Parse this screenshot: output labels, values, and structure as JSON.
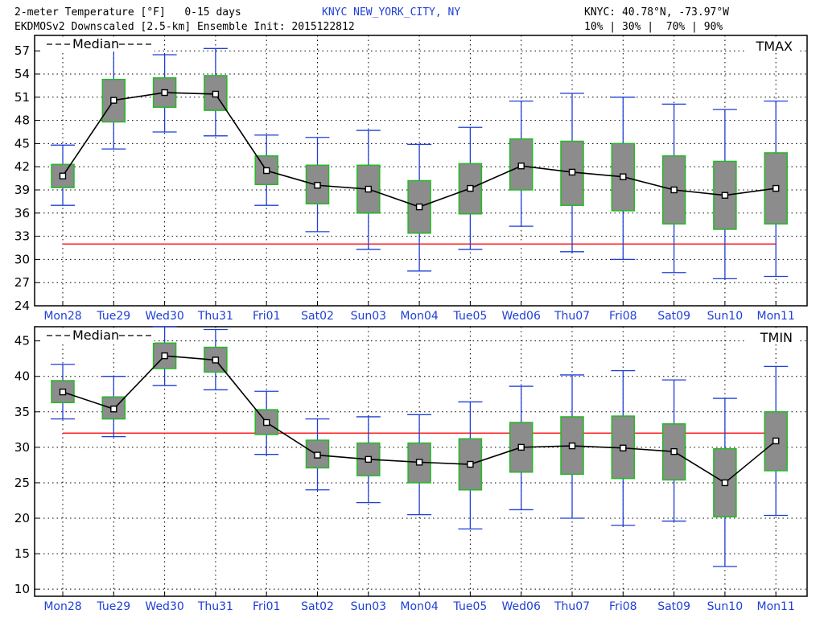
{
  "header": {
    "line1_left": "2-meter Temperature [°F]   0-15 days",
    "station": "KNYC NEW_YORK_CITY, NY",
    "coords": "KNYC: 40.78°N, -73.97°W",
    "line2_left": "EKDMOSv2 Downscaled [2.5-km] Ensemble Init: 2015122812",
    "percentiles": "10% | 30% |  70% | 90%"
  },
  "colors": {
    "whisker": "#1f3fd6",
    "box_fill": "#8c8c8c",
    "box_edge": "#22bb22",
    "median": "#000000",
    "freezing_line": "#ff2020",
    "tick_labels": "#1f3fd6"
  },
  "chart_data": [
    {
      "type": "box",
      "title": "TMAX",
      "legend": "Median",
      "categories": [
        "Mon28",
        "Tue29",
        "Wed30",
        "Thu31",
        "Fri01",
        "Sat02",
        "Sun03",
        "Mon04",
        "Tue05",
        "Wed06",
        "Thu07",
        "Fri08",
        "Sat09",
        "Sun10",
        "Mon11"
      ],
      "p10": [
        37.0,
        44.3,
        46.5,
        46.0,
        37.0,
        33.6,
        31.3,
        28.5,
        31.3,
        34.3,
        31.0,
        30.0,
        28.3,
        27.5,
        27.8
      ],
      "p30": [
        39.3,
        47.8,
        49.7,
        49.3,
        39.7,
        37.2,
        36.0,
        33.4,
        35.9,
        39.0,
        37.0,
        36.3,
        34.6,
        33.9,
        34.6
      ],
      "median": [
        40.8,
        50.6,
        51.6,
        51.4,
        41.5,
        39.6,
        39.1,
        36.8,
        39.2,
        42.1,
        41.3,
        40.7,
        39.0,
        38.3,
        39.2
      ],
      "p70": [
        42.3,
        53.3,
        53.5,
        53.8,
        43.4,
        42.2,
        42.2,
        40.2,
        42.4,
        45.6,
        45.3,
        45.0,
        43.4,
        42.7,
        43.8
      ],
      "p90": [
        44.8,
        57.5,
        56.5,
        57.3,
        46.1,
        45.8,
        46.7,
        44.9,
        47.1,
        50.5,
        51.5,
        51.0,
        50.1,
        49.4,
        50.5
      ],
      "reference_line": 32,
      "yticks": [
        24,
        27,
        30,
        33,
        36,
        39,
        42,
        45,
        48,
        51,
        54,
        57
      ],
      "ylim": [
        24,
        59
      ]
    },
    {
      "type": "box",
      "title": "TMIN",
      "legend": "Median",
      "categories": [
        "Mon28",
        "Tue29",
        "Wed30",
        "Thu31",
        "Fri01",
        "Sat02",
        "Sun03",
        "Mon04",
        "Tue05",
        "Wed06",
        "Thu07",
        "Fri08",
        "Sat09",
        "Sun10",
        "Mon11"
      ],
      "p10": [
        34.0,
        31.5,
        38.7,
        38.1,
        29.0,
        24.0,
        22.2,
        20.5,
        18.5,
        21.2,
        20.0,
        19.0,
        19.6,
        13.2,
        20.4
      ],
      "p30": [
        36.3,
        34.0,
        41.1,
        40.6,
        31.8,
        27.1,
        26.0,
        25.0,
        24.0,
        26.5,
        26.2,
        25.6,
        25.4,
        20.2,
        26.7
      ],
      "median": [
        37.8,
        35.4,
        42.9,
        42.3,
        33.5,
        28.9,
        28.3,
        27.9,
        27.6,
        30.0,
        30.2,
        29.9,
        29.4,
        25.0,
        30.9
      ],
      "p70": [
        39.4,
        37.1,
        44.7,
        44.1,
        35.3,
        31.0,
        30.6,
        30.6,
        31.2,
        33.5,
        34.3,
        34.4,
        33.3,
        29.8,
        35.0
      ],
      "p90": [
        41.7,
        40.0,
        47.0,
        46.6,
        37.9,
        34.0,
        34.3,
        34.6,
        36.4,
        38.6,
        40.2,
        40.8,
        39.5,
        36.9,
        41.4
      ],
      "reference_line": 32,
      "yticks": [
        10,
        15,
        20,
        25,
        30,
        35,
        40,
        45
      ],
      "ylim": [
        9,
        47
      ]
    }
  ]
}
